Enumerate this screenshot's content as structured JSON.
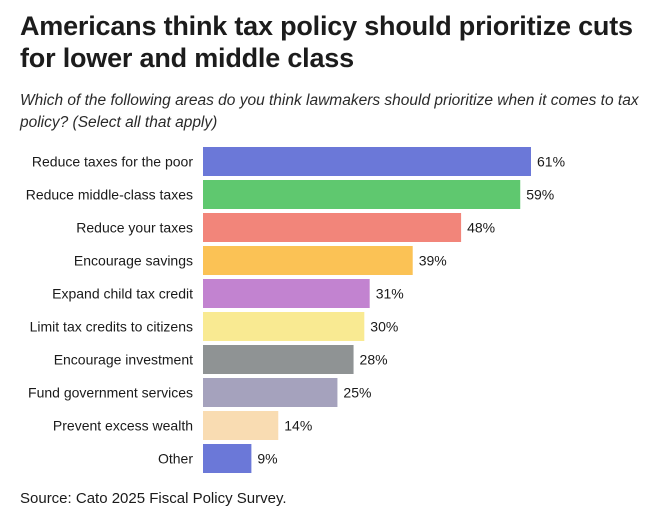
{
  "title": "Americans think tax policy should prioritize cuts for lower and middle class",
  "subtitle": "Which of the following areas do you think lawmakers should prioritize when it comes to tax policy? (Select all that apply)",
  "source": "Source: Cato 2025 Fiscal Policy Survey.",
  "chart_data": {
    "type": "bar",
    "orientation": "horizontal",
    "categories": [
      "Reduce taxes for the poor",
      "Reduce middle-class taxes",
      "Reduce your taxes",
      "Encourage savings",
      "Expand child tax credit",
      "Limit tax credits to citizens",
      "Encourage investment",
      "Fund government services",
      "Prevent excess wealth",
      "Other"
    ],
    "values": [
      61,
      59,
      48,
      39,
      31,
      30,
      28,
      25,
      14,
      9
    ],
    "value_labels": [
      "61%",
      "59%",
      "48%",
      "39%",
      "31%",
      "30%",
      "28%",
      "25%",
      "14%",
      "9%"
    ],
    "colors": [
      "#6b78d8",
      "#5fc86f",
      "#f2857a",
      "#fbc255",
      "#c283d0",
      "#f9ea92",
      "#8f9394",
      "#a5a2bd",
      "#f9dcb2",
      "#6b78d8"
    ],
    "xlim": [
      0,
      61
    ],
    "grid": false,
    "legend": "none"
  }
}
